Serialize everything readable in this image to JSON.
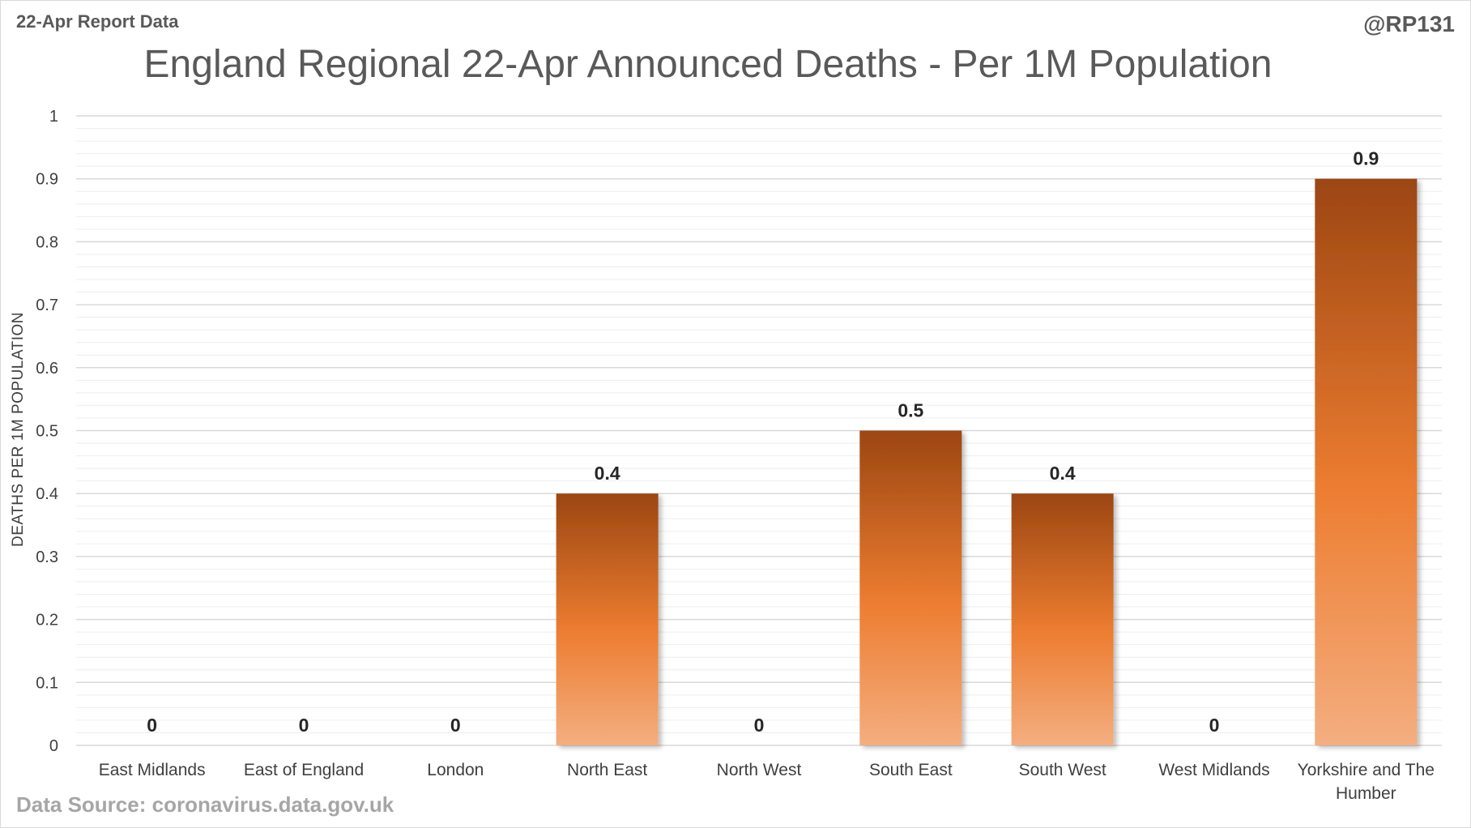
{
  "header": {
    "report_label": "22-Apr Report Data",
    "handle": "@RP131"
  },
  "footer": {
    "source": "Data Source: coronavirus.data.gov.uk"
  },
  "chart_data": {
    "type": "bar",
    "title": "England Regional 22-Apr Announced Deaths - Per 1M Population",
    "xlabel": "",
    "ylabel": "DEATHS PER 1M POPULATION",
    "categories": [
      "East Midlands",
      "East of England",
      "London",
      "North East",
      "North West",
      "South East",
      "South West",
      "West Midlands",
      "Yorkshire and The Humber"
    ],
    "category_lines": [
      [
        "East Midlands"
      ],
      [
        "East of England"
      ],
      [
        "London"
      ],
      [
        "North East"
      ],
      [
        "North West"
      ],
      [
        "South East"
      ],
      [
        "South West"
      ],
      [
        "West Midlands"
      ],
      [
        "Yorkshire and The",
        "Humber"
      ]
    ],
    "values": [
      0,
      0,
      0,
      0.4,
      0,
      0.5,
      0.4,
      0,
      0.9
    ],
    "ylim": [
      0,
      1
    ],
    "yticks": [
      0,
      0.1,
      0.2,
      0.3,
      0.4,
      0.5,
      0.6,
      0.7,
      0.8,
      0.9,
      1
    ],
    "grid": true,
    "minor_grid": true,
    "legend": "none",
    "colors": {
      "bar_top": "#9c4612",
      "bar_mid": "#ed7d31",
      "bar_bottom": "#f4ae80",
      "grid_major": "#d9d9d9",
      "grid_minor": "#eeeeee"
    }
  }
}
